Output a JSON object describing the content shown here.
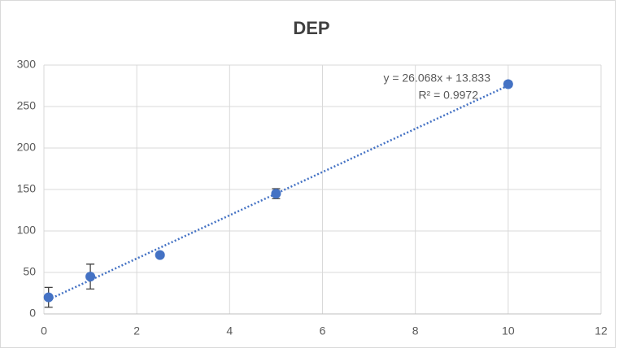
{
  "chart_data": {
    "type": "scatter",
    "title": "DEP",
    "series": [
      {
        "color": "#4472c4",
        "x": [
          0.1,
          1,
          2.5,
          5,
          10
        ],
        "values": [
          20,
          45,
          71,
          145,
          277
        ],
        "errors": [
          12,
          15,
          2,
          6,
          3
        ]
      }
    ],
    "xlim": [
      0,
      12
    ],
    "xticks": [
      0,
      2,
      4,
      6,
      8,
      10,
      12
    ],
    "ylim": [
      0,
      300
    ],
    "yticks": [
      0,
      50,
      100,
      150,
      200,
      250,
      300
    ],
    "grid": true,
    "trendline": {
      "equation": "y = 26.068x + 13.833",
      "r_squared": "R² = 0.9972",
      "color": "#4472c4"
    }
  }
}
